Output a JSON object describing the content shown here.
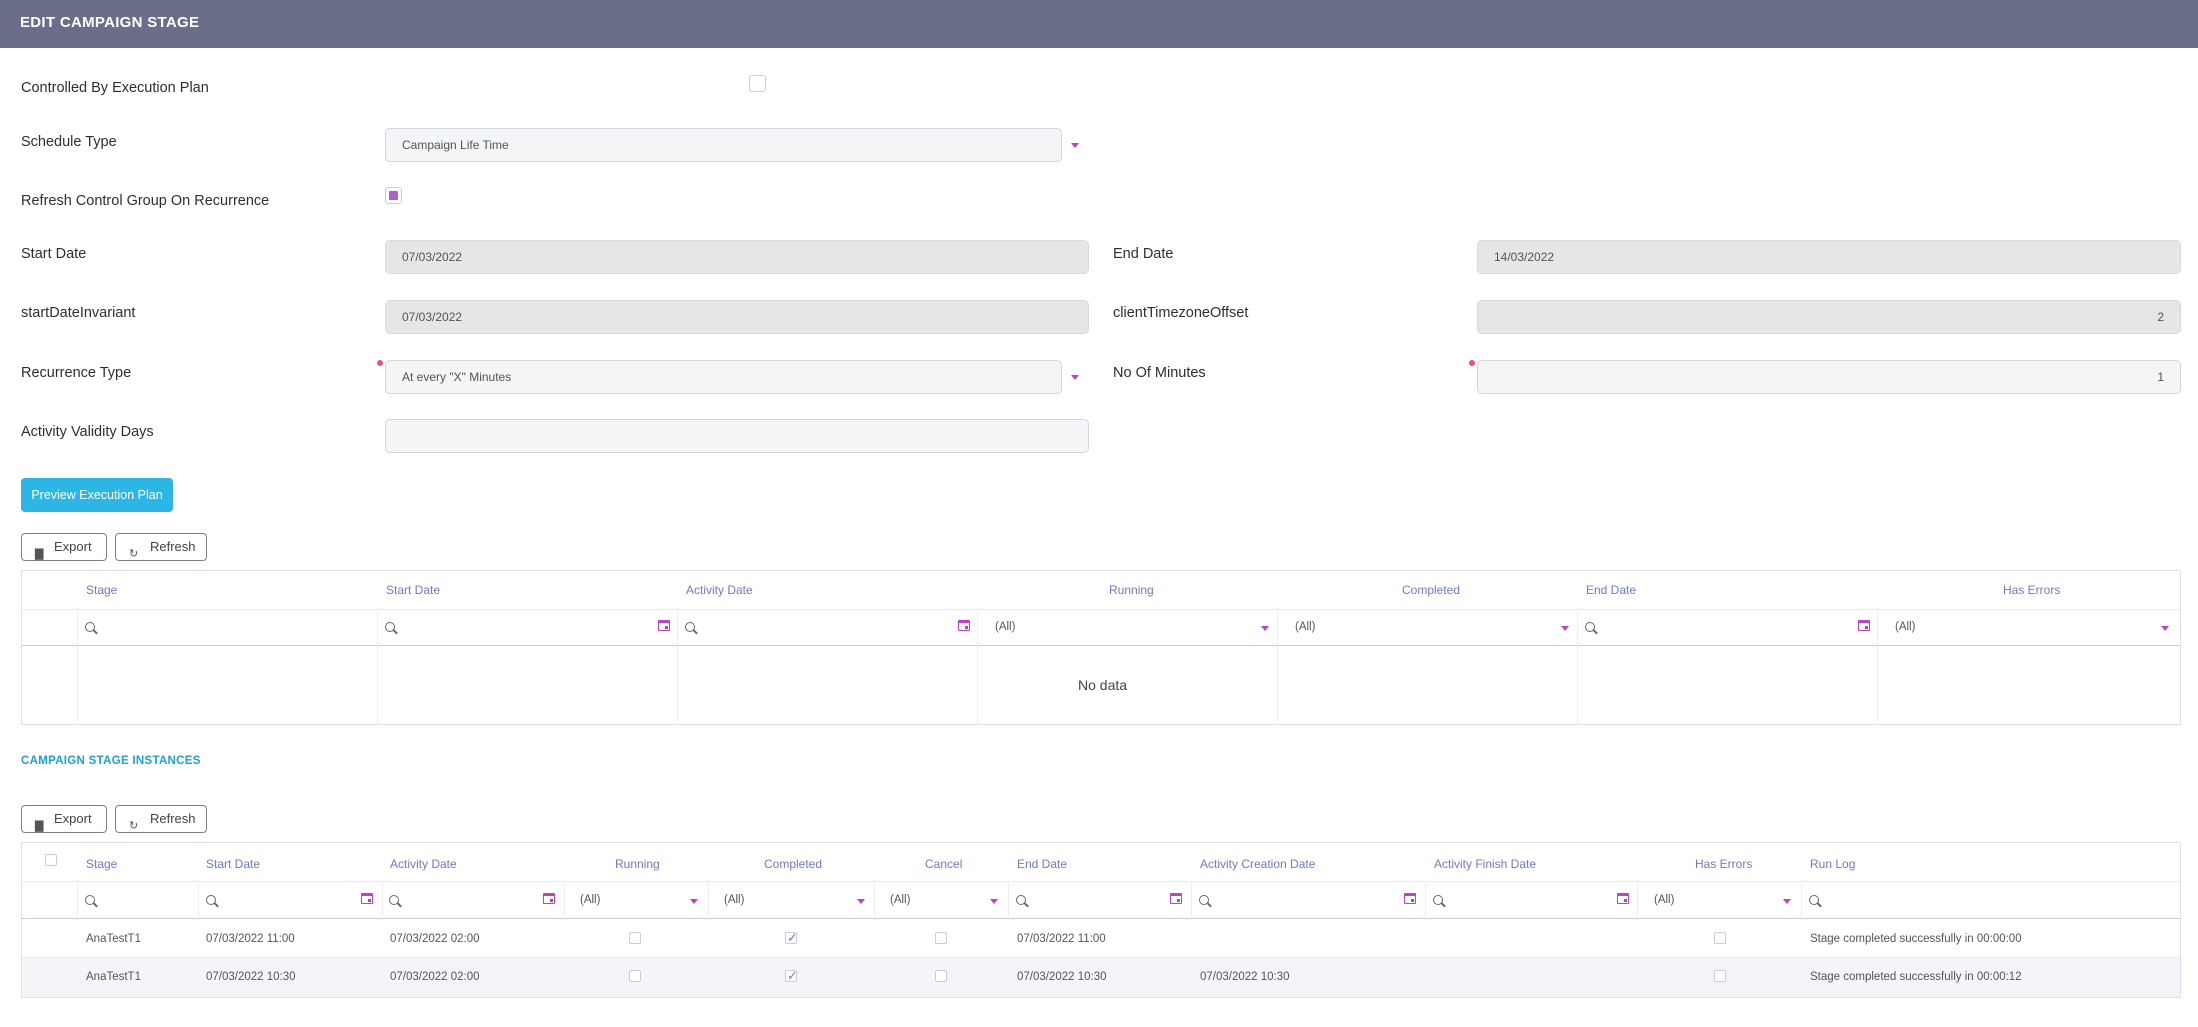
{
  "header": {
    "title": "EDIT CAMPAIGN STAGE"
  },
  "form": {
    "controlled_label": "Controlled By Execution Plan",
    "schedule_type_label": "Schedule Type",
    "schedule_type_value": "Campaign Life Time",
    "refresh_control_label": "Refresh Control Group On Recurrence",
    "start_date_label": "Start Date",
    "start_date_value": "07/03/2022",
    "end_date_label": "End Date",
    "end_date_value": "14/03/2022",
    "start_invariant_label": "startDateInvariant",
    "start_invariant_value": "07/03/2022",
    "tz_offset_label": "clientTimezoneOffset",
    "tz_offset_value": "2",
    "recurrence_type_label": "Recurrence Type",
    "recurrence_type_value": "At every \"X\" Minutes",
    "no_minutes_label": "No Of Minutes",
    "no_minutes_value": "1",
    "validity_label": "Activity Validity Days",
    "validity_value": "",
    "preview_button": "Preview Execution Plan",
    "controlled_checked": false,
    "refresh_checked": true
  },
  "toolbar1": {
    "export": "Export",
    "refresh": "Refresh"
  },
  "grid1": {
    "columns": [
      "Stage",
      "Start Date",
      "Activity Date",
      "Running",
      "Completed",
      "End Date",
      "Has Errors"
    ],
    "filter_all": "(All)",
    "no_data": "No data"
  },
  "section2": {
    "title": "CAMPAIGN STAGE INSTANCES"
  },
  "toolbar2": {
    "export": "Export",
    "refresh": "Refresh"
  },
  "grid2": {
    "columns": [
      "Stage",
      "Start Date",
      "Activity Date",
      "Running",
      "Completed",
      "Cancel",
      "End Date",
      "Activity Creation Date",
      "Activity Finish Date",
      "Has Errors",
      "Run Log"
    ],
    "filter_all": "(All)",
    "rows": [
      {
        "stage": "AnaTestT1",
        "start_date": "07/03/2022 11:00",
        "activity_date": "07/03/2022 02:00",
        "running": false,
        "completed": true,
        "cancel": false,
        "end_date": "07/03/2022 11:00",
        "activity_creation_date": "",
        "activity_finish_date": "",
        "has_errors": false,
        "run_log": "Stage completed successfully in 00:00:00"
      },
      {
        "stage": "AnaTestT1",
        "start_date": "07/03/2022 10:30",
        "activity_date": "07/03/2022 02:00",
        "running": false,
        "completed": true,
        "cancel": false,
        "end_date": "07/03/2022 10:30",
        "activity_creation_date": "07/03/2022 10:30",
        "activity_finish_date": "",
        "has_errors": false,
        "run_log": "Stage completed successfully in 00:00:12"
      }
    ]
  },
  "colors": {
    "header_bg": "#6b6e88",
    "accent": "#c03fc9",
    "primary_button": "#2bb6e6",
    "column_header": "#6f79c8",
    "section_title": "#1d9fd8"
  }
}
